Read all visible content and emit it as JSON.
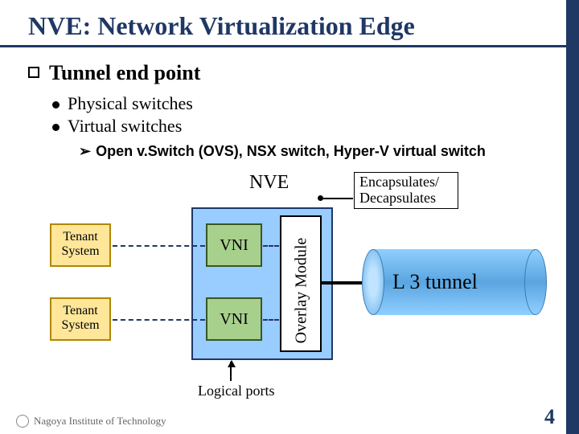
{
  "title": "NVE: Network Virtualization Edge",
  "main_bullet": "Tunnel end point",
  "sub_bullets": [
    "Physical switches",
    "Virtual switches"
  ],
  "sub2": "Open v.Switch (OVS), NSX switch, Hyper-V virtual switch",
  "diagram": {
    "nve_label": "NVE",
    "encap_line1": "Encapsulates/",
    "encap_line2": "Decapsulates",
    "vni_label": "VNI",
    "overlay_label": "Overlay Module",
    "tenant_line1": "Tenant",
    "tenant_line2": "System",
    "logical_ports": "Logical ports",
    "l3_label": "L 3 tunnel",
    "colors": {
      "nve_box_bg": "#99ccff",
      "nve_box_border": "#1f3864",
      "vni_bg": "#a8d08d",
      "vni_border": "#385723",
      "tenant_bg": "#ffe699",
      "tenant_border": "#b08600",
      "overlay_bg": "#ffffff",
      "tunnel_gradient_light": "#8fcfff",
      "tunnel_gradient_dark": "#5aa5e0",
      "title_color": "#1f3864",
      "dash_color": "#1f3864"
    }
  },
  "footer": "Nagoya Institute of Technology",
  "page": "4"
}
